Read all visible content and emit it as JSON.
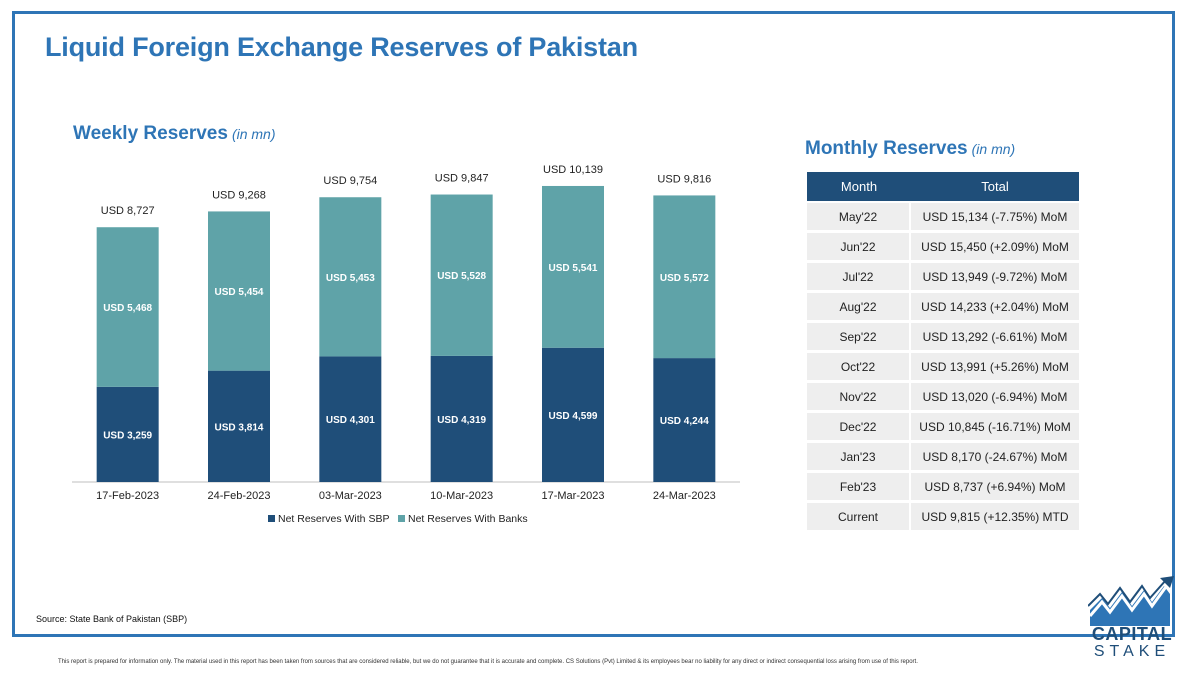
{
  "page": {
    "title": "Liquid Foreign Exchange Reserves of Pakistan",
    "source": "Source: State Bank of Pakistan (SBP)",
    "disclaimer": "This report is prepared for information only. The material used in this report has been taken from sources that are considered reliable, but we do not guarantee that it is accurate and complete. CS Solutions (Pvt) Limited & its employees bear no liability for any direct or indirect consequential loss arising from use of this report."
  },
  "weekly": {
    "title": "Weekly Reserves",
    "unit": "(in mn)"
  },
  "monthly": {
    "title": "Monthly Reserves",
    "unit": "(in mn)",
    "columns": [
      "Month",
      "Total"
    ],
    "rows": [
      {
        "month": "May'22",
        "total": "USD 15,134 (-7.75%) MoM"
      },
      {
        "month": "Jun'22",
        "total": "USD 15,450 (+2.09%) MoM"
      },
      {
        "month": "Jul'22",
        "total": "USD 13,949 (-9.72%) MoM"
      },
      {
        "month": "Aug'22",
        "total": "USD 14,233 (+2.04%) MoM"
      },
      {
        "month": "Sep'22",
        "total": "USD 13,292 (-6.61%) MoM"
      },
      {
        "month": "Oct'22",
        "total": "USD 13,991 (+5.26%) MoM"
      },
      {
        "month": "Nov'22",
        "total": "USD 13,020 (-6.94%) MoM"
      },
      {
        "month": "Dec'22",
        "total": "USD 10,845 (-16.71%) MoM"
      },
      {
        "month": "Jan'23",
        "total": "USD 8,170 (-24.67%) MoM"
      },
      {
        "month": "Feb'23",
        "total": "USD 8,737 (+6.94%) MoM"
      },
      {
        "month": "Current",
        "total": "USD 9,815 (+12.35%) MTD"
      }
    ]
  },
  "logo": {
    "line1": "CAPITAL",
    "line2": "STAKE"
  },
  "colors": {
    "accent": "#2e75b6",
    "sbp": "#1f4e79",
    "banks": "#5fa3a8",
    "header": "#1f4e79"
  },
  "chart_data": {
    "type": "bar",
    "stacked": true,
    "categories": [
      "17-Feb-2023",
      "24-Feb-2023",
      "03-Mar-2023",
      "10-Mar-2023",
      "17-Mar-2023",
      "24-Mar-2023"
    ],
    "series": [
      {
        "name": "Net Reserves With SBP",
        "values": [
          3259,
          3814,
          4301,
          4319,
          4599,
          4244
        ],
        "labels": [
          "USD 3,259",
          "USD 3,814",
          "USD 4,301",
          "USD 4,319",
          "USD 4,599",
          "USD 4,244"
        ]
      },
      {
        "name": "Net Reserves With Banks",
        "values": [
          5468,
          5454,
          5453,
          5528,
          5541,
          5572
        ],
        "labels": [
          "USD 5,468",
          "USD 5,454",
          "USD 5,453",
          "USD 5,528",
          "USD 5,541",
          "USD 5,572"
        ]
      }
    ],
    "totals": [
      8727,
      9268,
      9754,
      9847,
      10139,
      9816
    ],
    "total_labels": [
      "USD 8,727",
      "USD 9,268",
      "USD 9,754",
      "USD 9,847",
      "USD 10,139",
      "USD 9,816"
    ],
    "ylim": [
      0,
      11000
    ],
    "grid": false,
    "legend": "bottom"
  }
}
